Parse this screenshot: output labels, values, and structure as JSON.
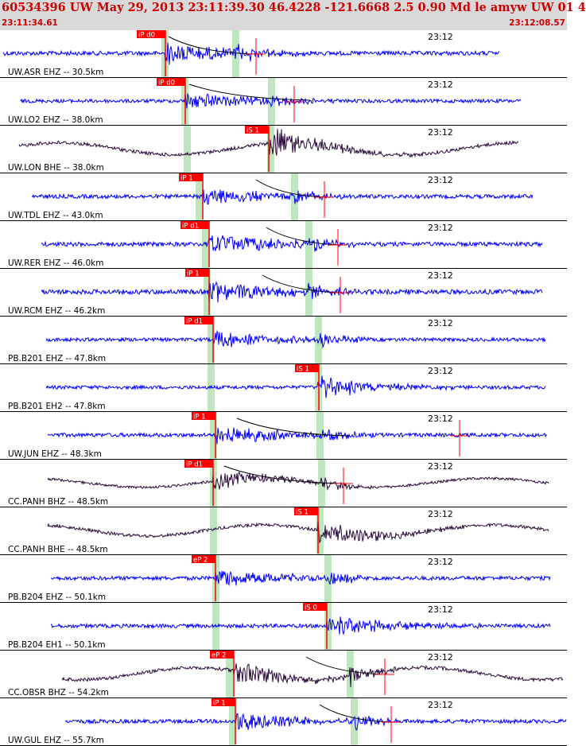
{
  "header": {
    "title": "60534396 UW May 29, 2013 23:11:39.30   46.4228 -121.6668  2.5 0.90 Md le amyw UW 01   4",
    "start_time": "23:11:34.61",
    "end_time": "23:12:08.57"
  },
  "colors": {
    "header_bg": "#d9d9d9",
    "header_text": "#cc0000",
    "trace_blue": "#0000ff",
    "trace_dark": "#2a0a3c",
    "pick": "#ff0000",
    "window": "#bfe6bf",
    "curve": "#000000"
  },
  "chart_data": {
    "type": "line",
    "traces": [
      {
        "label": "UW.ASR EHZ -- 30.5km",
        "color": "blue",
        "pick": "iP d0",
        "minute_label": "23:12",
        "curve": true,
        "amp": 0.55,
        "low": false
      },
      {
        "label": "UW.LO2 EHZ -- 38.0km",
        "color": "blue",
        "pick": "iP d0",
        "minute_label": "23:12",
        "curve": true,
        "amp": 0.45,
        "low": false
      },
      {
        "label": "UW.LON BHE -- 38.0km",
        "color": "dark",
        "pick": "iS 1",
        "minute_label": "23:12",
        "curve": false,
        "amp": 0.6,
        "low": true
      },
      {
        "label": "UW.TDL EHZ -- 43.0km",
        "color": "blue",
        "pick": "iP 1",
        "minute_label": "23:12",
        "curve": true,
        "amp": 0.5,
        "low": false
      },
      {
        "label": "UW.RER EHZ -- 46.0km",
        "color": "blue",
        "pick": "iP d1",
        "minute_label": "23:12",
        "curve": true,
        "amp": 0.55,
        "low": false
      },
      {
        "label": "UW.RCM EHZ -- 46.2km",
        "color": "blue",
        "pick": "iP 1",
        "minute_label": "23:12",
        "curve": true,
        "amp": 0.6,
        "low": false
      },
      {
        "label": "PB.B201 EHZ -- 47.8km",
        "color": "blue",
        "pick": "iP d1",
        "minute_label": "23:12",
        "curve": false,
        "amp": 0.45,
        "low": false
      },
      {
        "label": "PB.B201 EH2 -- 47.8km",
        "color": "blue",
        "pick": "iS 1",
        "minute_label": "23:12",
        "curve": false,
        "amp": 0.45,
        "low": false
      },
      {
        "label": "UW.JUN EHZ -- 48.3km",
        "color": "blue",
        "pick": "iP 1",
        "minute_label": "23:12",
        "curve": true,
        "amp": 0.5,
        "low": false
      },
      {
        "label": "CC.PANH BHZ -- 48.5km",
        "color": "dark",
        "pick": "iP d1",
        "minute_label": "23:12",
        "curve": true,
        "amp": 0.45,
        "low": true
      },
      {
        "label": "CC.PANH BHE -- 48.5km",
        "color": "dark",
        "pick": "iS 1",
        "minute_label": "23:12",
        "curve": false,
        "amp": 0.55,
        "low": true
      },
      {
        "label": "PB.B204 EHZ -- 50.1km",
        "color": "blue",
        "pick": "eP 2",
        "minute_label": "23:12",
        "curve": false,
        "amp": 0.5,
        "low": false
      },
      {
        "label": "PB.B204 EH1 -- 50.1km",
        "color": "blue",
        "pick": "iS 0",
        "minute_label": "23:12",
        "curve": false,
        "amp": 0.5,
        "low": false
      },
      {
        "label": "CC.OBSR BHZ -- 54.2km",
        "color": "dark",
        "pick": "eP 2",
        "minute_label": "23:12",
        "curve": true,
        "amp": 0.6,
        "low": true
      },
      {
        "label": "UW.GUL EHZ -- 55.7km",
        "color": "blue",
        "pick": "iP 1",
        "minute_label": "23:12",
        "curve": true,
        "amp": 0.5,
        "low": false
      }
    ]
  }
}
